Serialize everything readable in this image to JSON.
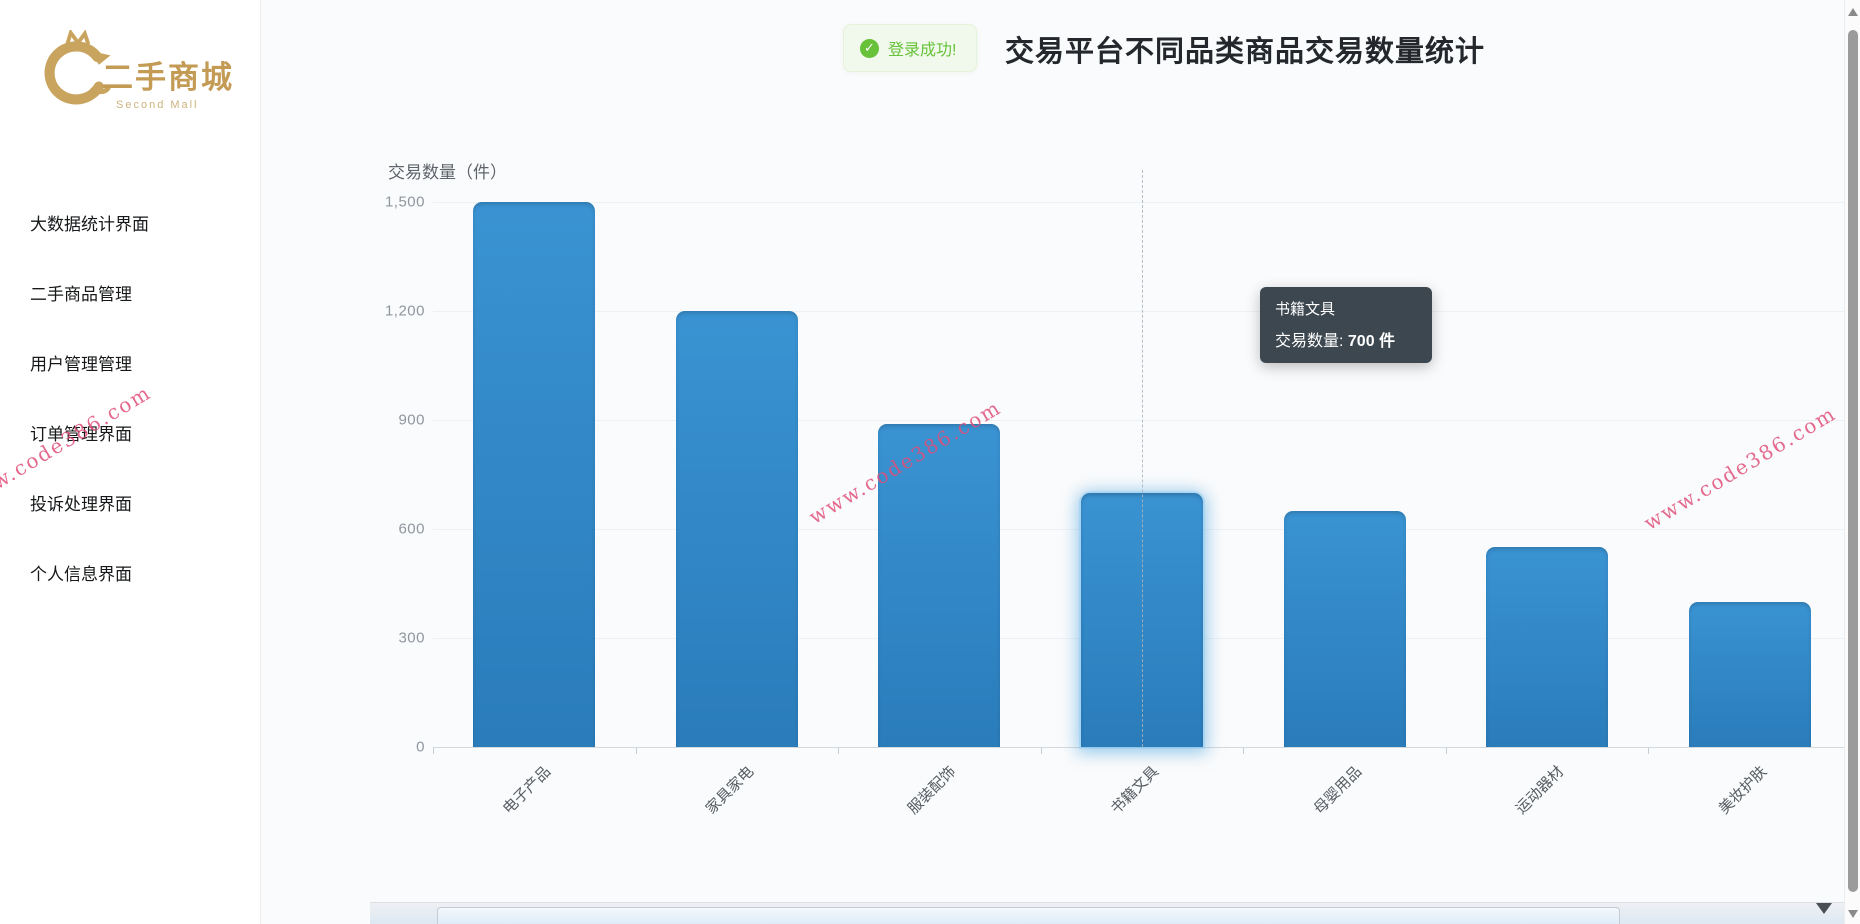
{
  "page": {
    "title": "交易平台不同品类商品交易数量统计"
  },
  "toast": {
    "message": "登录成功!",
    "color": "#67c23a",
    "check_icon": "✓"
  },
  "sidebar": {
    "logo": {
      "title": "二手商城",
      "subtitle": "Second Mall",
      "brand_color": "#c49b55"
    },
    "items": [
      {
        "label": "大数据统计界面"
      },
      {
        "label": "二手商品管理"
      },
      {
        "label": "用户管理管理"
      },
      {
        "label": "订单管理界面"
      },
      {
        "label": "投诉处理界面"
      },
      {
        "label": "个人信息界面"
      }
    ]
  },
  "watermark": {
    "text": "www.code386.com",
    "color": "#e0507a"
  },
  "chart_data": {
    "type": "bar",
    "title": "交易平台不同品类商品交易数量统计",
    "xlabel": "",
    "ylabel": "交易数量（件）",
    "categories": [
      "电子产品",
      "家具家电",
      "服装配饰",
      "书籍文具",
      "母婴用品",
      "运动器材",
      "美妆护肤"
    ],
    "values": [
      1500,
      1200,
      890,
      700,
      650,
      550,
      400
    ],
    "ylim": [
      0,
      1500
    ],
    "yticks": [
      0,
      300,
      600,
      900,
      1200,
      1500
    ],
    "ytick_labels": [
      "0",
      "300",
      "600",
      "900",
      "1,200",
      "1,500"
    ],
    "grid": true,
    "legend_position": "none",
    "bar_color": "#2f87c6",
    "highlighted_index": 3
  },
  "tooltip": {
    "category": "书籍文具",
    "label": "交易数量",
    "value": "700",
    "unit": "件"
  }
}
